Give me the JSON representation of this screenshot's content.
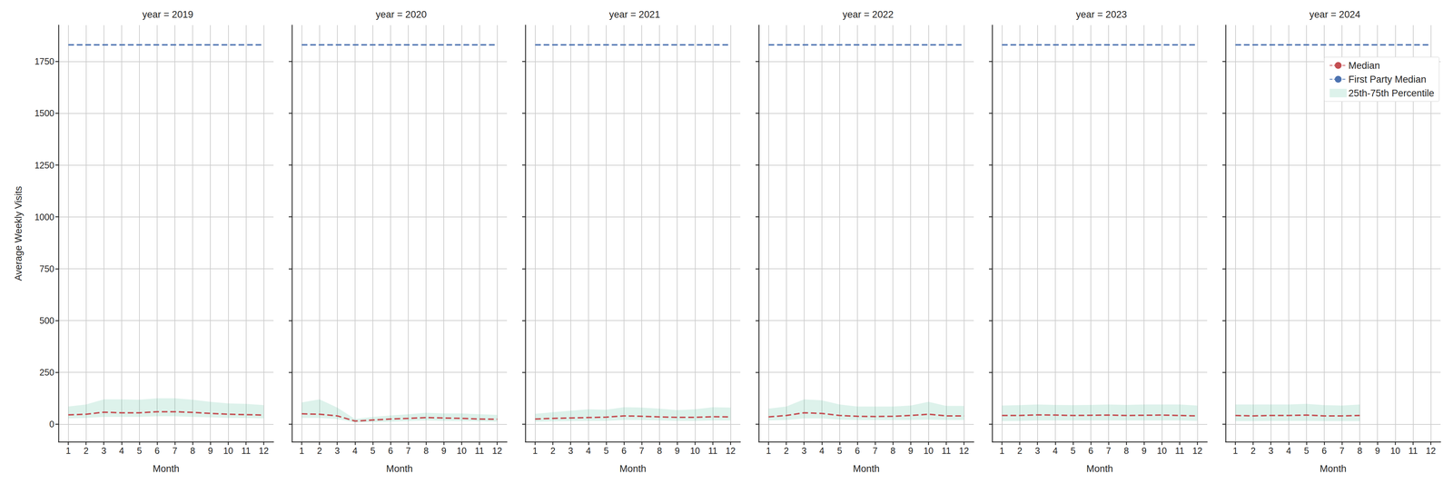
{
  "chart_data": [
    {
      "type": "line",
      "title": "year = 2019",
      "x_label": "Month",
      "y_label": "Average Weekly Visits",
      "x": [
        1,
        2,
        3,
        4,
        5,
        6,
        7,
        8,
        9,
        10,
        11,
        12
      ],
      "xlim": [
        0.45,
        12.55
      ],
      "xticks": [
        1,
        2,
        3,
        4,
        5,
        6,
        7,
        8,
        9,
        10,
        11,
        12
      ],
      "ylim": [
        -85,
        1925
      ],
      "yticks": [
        0,
        250,
        500,
        750,
        1000,
        1250,
        1500,
        1750
      ],
      "grid": true,
      "series": [
        {
          "name": "Median",
          "color": "#c44e52",
          "line_style": "dashed",
          "values": [
            45,
            48,
            58,
            55,
            55,
            60,
            60,
            57,
            52,
            48,
            46,
            44
          ]
        },
        {
          "name": "First Party Median",
          "color": "#4c72b0",
          "line_style": "dashed",
          "values": [
            1830,
            1830,
            1830,
            1830,
            1830,
            1830,
            1830,
            1830,
            1830,
            1830,
            1830,
            1830
          ]
        },
        {
          "name": "25th-75th Percentile",
          "type": "band",
          "color": "#66c2a5",
          "lower": [
            28,
            30,
            35,
            35,
            35,
            38,
            38,
            35,
            33,
            30,
            30,
            28
          ],
          "upper": [
            85,
            95,
            120,
            120,
            118,
            125,
            125,
            118,
            108,
            100,
            98,
            92
          ]
        }
      ]
    },
    {
      "type": "line",
      "title": "year = 2020",
      "x_label": "Month",
      "tick_labels": "x",
      "x": [
        1,
        2,
        3,
        4,
        5,
        6,
        7,
        8,
        9,
        10,
        11,
        12
      ],
      "xlim": [
        0.45,
        12.55
      ],
      "xticks": [
        1,
        2,
        3,
        4,
        5,
        6,
        7,
        8,
        9,
        10,
        11,
        12
      ],
      "ylim": [
        -85,
        1925
      ],
      "yticks": [
        0,
        250,
        500,
        750,
        1000,
        1250,
        1500,
        1750
      ],
      "grid": true,
      "series": [
        {
          "name": "Median",
          "color": "#c44e52",
          "line_style": "dashed",
          "values": [
            50,
            48,
            40,
            15,
            20,
            25,
            28,
            32,
            30,
            28,
            25,
            24
          ]
        },
        {
          "name": "First Party Median",
          "color": "#4c72b0",
          "line_style": "dashed",
          "values": [
            1830,
            1830,
            1830,
            1830,
            1830,
            1830,
            1830,
            1830,
            1830,
            1830,
            1830,
            1830
          ]
        },
        {
          "name": "25th-75th Percentile",
          "type": "band",
          "color": "#66c2a5",
          "lower": [
            30,
            30,
            25,
            8,
            10,
            12,
            15,
            18,
            16,
            15,
            14,
            12
          ],
          "upper": [
            105,
            120,
            80,
            25,
            35,
            42,
            48,
            55,
            52,
            52,
            48,
            45
          ]
        }
      ]
    },
    {
      "type": "line",
      "title": "year = 2021",
      "x_label": "Month",
      "tick_labels": "x",
      "x": [
        1,
        2,
        3,
        4,
        5,
        6,
        7,
        8,
        9,
        10,
        11,
        12
      ],
      "xlim": [
        0.45,
        12.55
      ],
      "xticks": [
        1,
        2,
        3,
        4,
        5,
        6,
        7,
        8,
        9,
        10,
        11,
        12
      ],
      "ylim": [
        -85,
        1925
      ],
      "yticks": [
        0,
        250,
        500,
        750,
        1000,
        1250,
        1500,
        1750
      ],
      "grid": true,
      "series": [
        {
          "name": "Median",
          "color": "#c44e52",
          "line_style": "dashed",
          "values": [
            25,
            28,
            30,
            32,
            34,
            40,
            38,
            35,
            33,
            33,
            36,
            35
          ]
        },
        {
          "name": "First Party Median",
          "color": "#4c72b0",
          "line_style": "dashed",
          "values": [
            1830,
            1830,
            1830,
            1830,
            1830,
            1830,
            1830,
            1830,
            1830,
            1830,
            1830,
            1830
          ]
        },
        {
          "name": "25th-75th Percentile",
          "type": "band",
          "color": "#66c2a5",
          "lower": [
            12,
            14,
            15,
            16,
            16,
            20,
            20,
            18,
            16,
            16,
            18,
            18
          ],
          "upper": [
            50,
            58,
            65,
            72,
            70,
            82,
            80,
            75,
            68,
            72,
            82,
            80
          ]
        }
      ]
    },
    {
      "type": "line",
      "title": "year = 2022",
      "x_label": "Month",
      "tick_labels": "x",
      "x": [
        1,
        2,
        3,
        4,
        5,
        6,
        7,
        8,
        9,
        10,
        11,
        12
      ],
      "xlim": [
        0.45,
        12.55
      ],
      "xticks": [
        1,
        2,
        3,
        4,
        5,
        6,
        7,
        8,
        9,
        10,
        11,
        12
      ],
      "ylim": [
        -85,
        1925
      ],
      "yticks": [
        0,
        250,
        500,
        750,
        1000,
        1250,
        1500,
        1750
      ],
      "grid": true,
      "series": [
        {
          "name": "Median",
          "color": "#c44e52",
          "line_style": "dashed",
          "values": [
            35,
            42,
            55,
            52,
            42,
            38,
            37,
            38,
            42,
            48,
            40,
            40
          ]
        },
        {
          "name": "First Party Median",
          "color": "#4c72b0",
          "line_style": "dashed",
          "values": [
            1830,
            1830,
            1830,
            1830,
            1830,
            1830,
            1830,
            1830,
            1830,
            1830,
            1830,
            1830
          ]
        },
        {
          "name": "25th-75th Percentile",
          "type": "band",
          "color": "#66c2a5",
          "lower": [
            18,
            20,
            28,
            28,
            22,
            20,
            20,
            20,
            20,
            22,
            20,
            20
          ],
          "upper": [
            75,
            85,
            120,
            115,
            95,
            85,
            85,
            85,
            90,
            108,
            88,
            88
          ]
        }
      ]
    },
    {
      "type": "line",
      "title": "year = 2023",
      "x_label": "Month",
      "tick_labels": "x",
      "x": [
        1,
        2,
        3,
        4,
        5,
        6,
        7,
        8,
        9,
        10,
        11,
        12
      ],
      "xlim": [
        0.45,
        12.55
      ],
      "xticks": [
        1,
        2,
        3,
        4,
        5,
        6,
        7,
        8,
        9,
        10,
        11,
        12
      ],
      "ylim": [
        -85,
        1925
      ],
      "yticks": [
        0,
        250,
        500,
        750,
        1000,
        1250,
        1500,
        1750
      ],
      "grid": true,
      "series": [
        {
          "name": "Median",
          "color": "#c44e52",
          "line_style": "dashed",
          "values": [
            42,
            42,
            45,
            44,
            42,
            43,
            44,
            42,
            43,
            44,
            42,
            40
          ]
        },
        {
          "name": "First Party Median",
          "color": "#4c72b0",
          "line_style": "dashed",
          "values": [
            1830,
            1830,
            1830,
            1830,
            1830,
            1830,
            1830,
            1830,
            1830,
            1830,
            1830,
            1830
          ]
        },
        {
          "name": "25th-75th Percentile",
          "type": "band",
          "color": "#66c2a5",
          "lower": [
            15,
            16,
            18,
            18,
            18,
            18,
            18,
            18,
            18,
            18,
            18,
            16
          ],
          "upper": [
            90,
            92,
            95,
            93,
            92,
            93,
            95,
            93,
            95,
            95,
            95,
            90
          ]
        }
      ]
    },
    {
      "type": "line",
      "title": "year = 2024",
      "x_label": "Month",
      "tick_labels": "x",
      "legend": "upper right",
      "x": [
        1,
        2,
        3,
        4,
        5,
        6,
        7,
        8,
        9,
        10,
        11,
        12
      ],
      "xlim": [
        0.45,
        12.55
      ],
      "xticks": [
        1,
        2,
        3,
        4,
        5,
        6,
        7,
        8,
        9,
        10,
        11,
        12
      ],
      "ylim": [
        -85,
        1925
      ],
      "yticks": [
        0,
        250,
        500,
        750,
        1000,
        1250,
        1500,
        1750
      ],
      "grid": true,
      "series": [
        {
          "name": "Median",
          "color": "#c44e52",
          "line_style": "dashed",
          "values": [
            42,
            40,
            42,
            42,
            44,
            40,
            40,
            42,
            null,
            null,
            null,
            null
          ]
        },
        {
          "name": "First Party Median",
          "color": "#4c72b0",
          "line_style": "dashed",
          "values": [
            1830,
            1830,
            1830,
            1830,
            1830,
            1830,
            1830,
            1830,
            1830,
            1830,
            1830,
            1830
          ]
        },
        {
          "name": "25th-75th Percentile",
          "type": "band",
          "color": "#66c2a5",
          "lower": [
            15,
            15,
            16,
            16,
            16,
            15,
            15,
            15,
            null,
            null,
            null,
            null
          ],
          "upper": [
            95,
            95,
            95,
            95,
            98,
            92,
            90,
            95,
            null,
            null,
            null,
            null
          ]
        }
      ]
    }
  ]
}
